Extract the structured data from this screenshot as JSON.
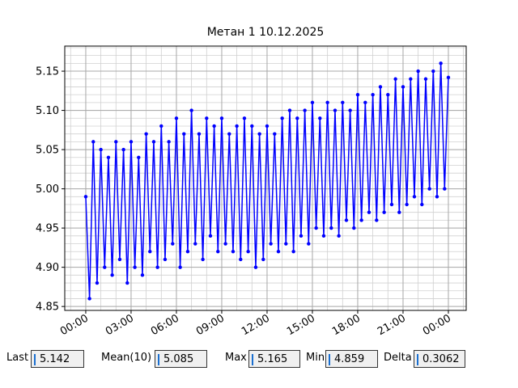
{
  "chart_data": {
    "type": "line",
    "title": "Метан 1 10.12.2025",
    "series": [
      {
        "name": "Метан 1",
        "color": "#0000ff",
        "x": [
          0,
          0.25,
          0.5,
          0.75,
          1,
          1.25,
          1.5,
          1.75,
          2,
          2.25,
          2.5,
          2.75,
          3,
          3.25,
          3.5,
          3.75,
          4,
          4.25,
          4.5,
          4.75,
          5,
          5.25,
          5.5,
          5.75,
          6,
          6.25,
          6.5,
          6.75,
          7,
          7.25,
          7.5,
          7.75,
          8,
          8.25,
          8.5,
          8.75,
          9,
          9.25,
          9.5,
          9.75,
          10,
          10.25,
          10.5,
          10.75,
          11,
          11.25,
          11.5,
          11.75,
          12,
          12.25,
          12.5,
          12.75,
          13,
          13.25,
          13.5,
          13.75,
          14,
          14.25,
          14.5,
          14.75,
          15,
          15.25,
          15.5,
          15.75,
          16,
          16.25,
          16.5,
          16.75,
          17,
          17.25,
          17.5,
          17.75,
          18,
          18.25,
          18.5,
          18.75,
          19,
          19.25,
          19.5,
          19.75,
          20,
          20.25,
          20.5,
          20.75,
          21,
          21.25,
          21.5,
          21.75,
          22,
          22.25,
          22.5,
          22.75,
          23,
          23.25,
          23.5,
          23.75,
          24
        ],
        "values": [
          4.99,
          4.86,
          5.06,
          4.88,
          5.05,
          4.9,
          5.04,
          4.89,
          5.06,
          4.91,
          5.05,
          4.88,
          5.06,
          4.9,
          5.04,
          4.89,
          5.07,
          4.92,
          5.06,
          4.9,
          5.08,
          4.91,
          5.06,
          4.93,
          5.09,
          4.9,
          5.07,
          4.92,
          5.1,
          4.93,
          5.07,
          4.91,
          5.09,
          4.94,
          5.08,
          4.92,
          5.09,
          4.93,
          5.07,
          4.92,
          5.08,
          4.91,
          5.09,
          4.92,
          5.08,
          4.9,
          5.07,
          4.91,
          5.08,
          4.93,
          5.07,
          4.92,
          5.09,
          4.93,
          5.1,
          4.92,
          5.09,
          4.94,
          5.1,
          4.93,
          5.11,
          4.95,
          5.09,
          4.94,
          5.11,
          4.95,
          5.1,
          4.94,
          5.11,
          4.96,
          5.1,
          4.95,
          5.12,
          4.96,
          5.11,
          4.97,
          5.12,
          4.96,
          5.13,
          4.97,
          5.12,
          4.98,
          5.14,
          4.97,
          5.13,
          4.98,
          5.14,
          4.99,
          5.15,
          4.98,
          5.14,
          5.0,
          5.15,
          4.99,
          5.16,
          5.0,
          5.142
        ]
      }
    ],
    "xlim": [
      -1.39,
      25.18
    ],
    "xticks": [
      {
        "value": 0,
        "label": "00:00"
      },
      {
        "value": 3,
        "label": "03:00"
      },
      {
        "value": 6,
        "label": "06:00"
      },
      {
        "value": 9,
        "label": "09:00"
      },
      {
        "value": 12,
        "label": "12:00"
      },
      {
        "value": 15,
        "label": "15:00"
      },
      {
        "value": 18,
        "label": "18:00"
      },
      {
        "value": 21,
        "label": "21:00"
      },
      {
        "value": 24,
        "label": "00:00"
      }
    ],
    "ylim": [
      4.845,
      5.182
    ],
    "yticks": [
      4.85,
      {
        "value": 4.9,
        "label": "4.90"
      },
      4.95,
      {
        "value": 5,
        "label": "5.00"
      },
      5.05,
      {
        "value": 5.1,
        "label": "5.10"
      },
      5.15
    ],
    "grid": true,
    "minor_grid": true,
    "markers": true
  },
  "stats": [
    {
      "label": "Last",
      "value": "5.142"
    },
    {
      "label": "Mean(10)",
      "value": "5.085"
    },
    {
      "label": "Max",
      "value": "5.165"
    },
    {
      "label": "Min",
      "value": "4.859"
    },
    {
      "label": "Delta",
      "value": "0.3062"
    }
  ]
}
